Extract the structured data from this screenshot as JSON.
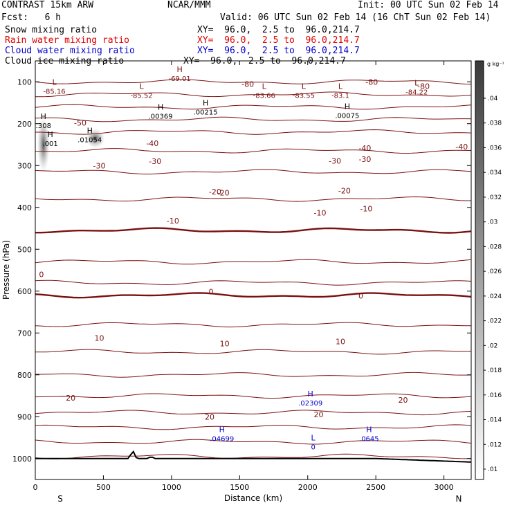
{
  "header": {
    "model": "CONTRAST 15km ARW",
    "org": "NCAR/MMM",
    "init": "Init: 00 UTC Sun 02 Feb 14",
    "fcst": "Fcst:   6 h",
    "valid": "Valid: 06 UTC Sun 02 Feb 14 (16 ChT Sun 02 Feb 14)"
  },
  "fields": [
    {
      "name": "Snow mixing ratio",
      "xy": "XY=  96.0,  2.5 to  96.0,214.7",
      "color": "#000000"
    },
    {
      "name": "Rain water mixing ratio",
      "xy": "XY=  96.0,  2.5 to  96.0,214.7",
      "color": "#e00000"
    },
    {
      "name": "Cloud water mixing ratio",
      "xy": "XY=  96.0,  2.5 to  96.0,214.7",
      "color": "#0000cc"
    },
    {
      "name": "Cloud ice mixing ratio",
      "xy": "XY=  96.0,  2.5 to  96.0,214.7",
      "color": "#000000"
    }
  ],
  "chart_data": {
    "type": "contour",
    "xlabel": "Distance (km)",
    "ylabel": "Pressure (hPa)",
    "xlim": [
      0,
      3200
    ],
    "ylim": [
      1050,
      50
    ],
    "x_ticks": [
      0,
      500,
      1000,
      1500,
      2000,
      2500,
      3000
    ],
    "y_ticks": [
      100,
      200,
      300,
      400,
      500,
      600,
      700,
      800,
      900,
      1000
    ],
    "x_end_labels": {
      "left": "S",
      "right": "N"
    },
    "colorbar": {
      "unit": "g kg⁻¹",
      "ticks": [
        ".01",
        ".012",
        ".014",
        ".016",
        ".018",
        ".02",
        ".022",
        ".024",
        ".026",
        ".028",
        ".03",
        ".032",
        ".034",
        ".036",
        ".038",
        ".04"
      ]
    },
    "temperature_levels": [
      {
        "v": -80,
        "p": 100
      },
      {
        "v": -70,
        "p": 130
      },
      {
        "v": -60,
        "p": 160
      },
      {
        "v": -50,
        "p": 190
      },
      {
        "v": -40,
        "p": 220
      },
      {
        "v": -30,
        "p": 265
      },
      {
        "v": -20,
        "p": 315
      },
      {
        "v": -10,
        "p": 380
      },
      {
        "v": 0,
        "p": 455
      },
      {
        "v": 10,
        "p": 530
      },
      {
        "v": 20,
        "p": 580
      },
      {
        "v": 0,
        "p": 610
      },
      {
        "v": -10,
        "p": 680
      },
      {
        "v": -20,
        "p": 745
      },
      {
        "v": -30,
        "p": 800
      },
      {
        "v": -40,
        "p": 850
      },
      {
        "v": -50,
        "p": 890
      },
      {
        "v": -60,
        "p": 925
      },
      {
        "v": -70,
        "p": 960
      },
      {
        "v": -80,
        "p": 995
      }
    ],
    "contour_labels": [
      {
        "text": "-80",
        "x": 1560,
        "p": 105,
        "c": "dark"
      },
      {
        "text": "-80",
        "x": 2470,
        "p": 100,
        "c": "dark"
      },
      {
        "text": "-80",
        "x": 2850,
        "p": 110,
        "c": "dark"
      },
      {
        "text": "-50",
        "x": 330,
        "p": 198,
        "c": "dark"
      },
      {
        "text": "-40",
        "x": 860,
        "p": 247,
        "c": "dark"
      },
      {
        "text": "-40",
        "x": 2420,
        "p": 258,
        "c": "dark"
      },
      {
        "text": "-40",
        "x": 3130,
        "p": 255,
        "c": "dark"
      },
      {
        "text": "-30",
        "x": 470,
        "p": 300,
        "c": "dark"
      },
      {
        "text": "-30",
        "x": 880,
        "p": 290,
        "c": "dark"
      },
      {
        "text": "-30",
        "x": 2200,
        "p": 289,
        "c": "dark"
      },
      {
        "text": "-30",
        "x": 2420,
        "p": 285,
        "c": "dark"
      },
      {
        "text": "-20",
        "x": 1320,
        "p": 362,
        "c": "dark"
      },
      {
        "text": "-20",
        "x": 1380,
        "p": 365,
        "c": "dark"
      },
      {
        "text": "-20",
        "x": 2270,
        "p": 360,
        "c": "dark"
      },
      {
        "text": "-10",
        "x": 1010,
        "p": 432,
        "c": "dark"
      },
      {
        "text": "-10",
        "x": 2090,
        "p": 413,
        "c": "dark"
      },
      {
        "text": "-10",
        "x": 2430,
        "p": 403,
        "c": "dark"
      },
      {
        "text": "0",
        "x": 45,
        "p": 560,
        "c": "dark"
      },
      {
        "text": "0",
        "x": 1290,
        "p": 601,
        "c": "dark"
      },
      {
        "text": "0",
        "x": 2390,
        "p": 611,
        "c": "dark"
      },
      {
        "text": "10",
        "x": 470,
        "p": 712,
        "c": "dark"
      },
      {
        "text": "10",
        "x": 1390,
        "p": 725,
        "c": "dark"
      },
      {
        "text": "10",
        "x": 2240,
        "p": 720,
        "c": "dark"
      },
      {
        "text": "20",
        "x": 260,
        "p": 855,
        "c": "dark"
      },
      {
        "text": "20",
        "x": 1280,
        "p": 900,
        "c": "dark"
      },
      {
        "text": "20",
        "x": 2080,
        "p": 895,
        "c": "dark"
      },
      {
        "text": "20",
        "x": 2700,
        "p": 860,
        "c": "dark"
      }
    ],
    "extrema": [
      {
        "type": "L",
        "value": "-85.16",
        "x": 140,
        "p": 110,
        "c": "dark"
      },
      {
        "type": "L",
        "value": "-85.52",
        "x": 780,
        "p": 120,
        "c": "dark"
      },
      {
        "type": "L",
        "value": "-83.66",
        "x": 1680,
        "p": 120,
        "c": "dark"
      },
      {
        "type": "L",
        "value": "-83.55",
        "x": 1970,
        "p": 120,
        "c": "dark"
      },
      {
        "type": "L",
        "value": "-83.1",
        "x": 2240,
        "p": 120,
        "c": "dark"
      },
      {
        "type": "L",
        "value": "-84.22",
        "x": 2800,
        "p": 112,
        "c": "dark"
      },
      {
        "type": "H",
        "value": "-69.01",
        "x": 1060,
        "p": 80,
        "c": "dark"
      },
      {
        "type": "H",
        "value": ".00369",
        "x": 920,
        "p": 170,
        "c": "black"
      },
      {
        "type": "H",
        "value": ".00215",
        "x": 1250,
        "p": 160,
        "c": "black"
      },
      {
        "type": "H",
        "value": ".00075",
        "x": 2290,
        "p": 168,
        "c": "black"
      },
      {
        "type": "H",
        "value": ".308",
        "x": 60,
        "p": 192,
        "c": "black"
      },
      {
        "type": "H",
        "value": ".001",
        "x": 110,
        "p": 235,
        "c": "black"
      },
      {
        "type": "H",
        "value": ".01054",
        "x": 400,
        "p": 226,
        "c": "black"
      },
      {
        "type": "H",
        "value": ".02309",
        "x": 2020,
        "p": 855,
        "c": "blue"
      },
      {
        "type": "H",
        "value": ".04699",
        "x": 1370,
        "p": 940,
        "c": "blue"
      },
      {
        "type": "H",
        "value": ".0645",
        "x": 2450,
        "p": 940,
        "c": "blue"
      },
      {
        "type": "L",
        "value": "0",
        "x": 2040,
        "p": 960,
        "c": "blue"
      }
    ]
  }
}
